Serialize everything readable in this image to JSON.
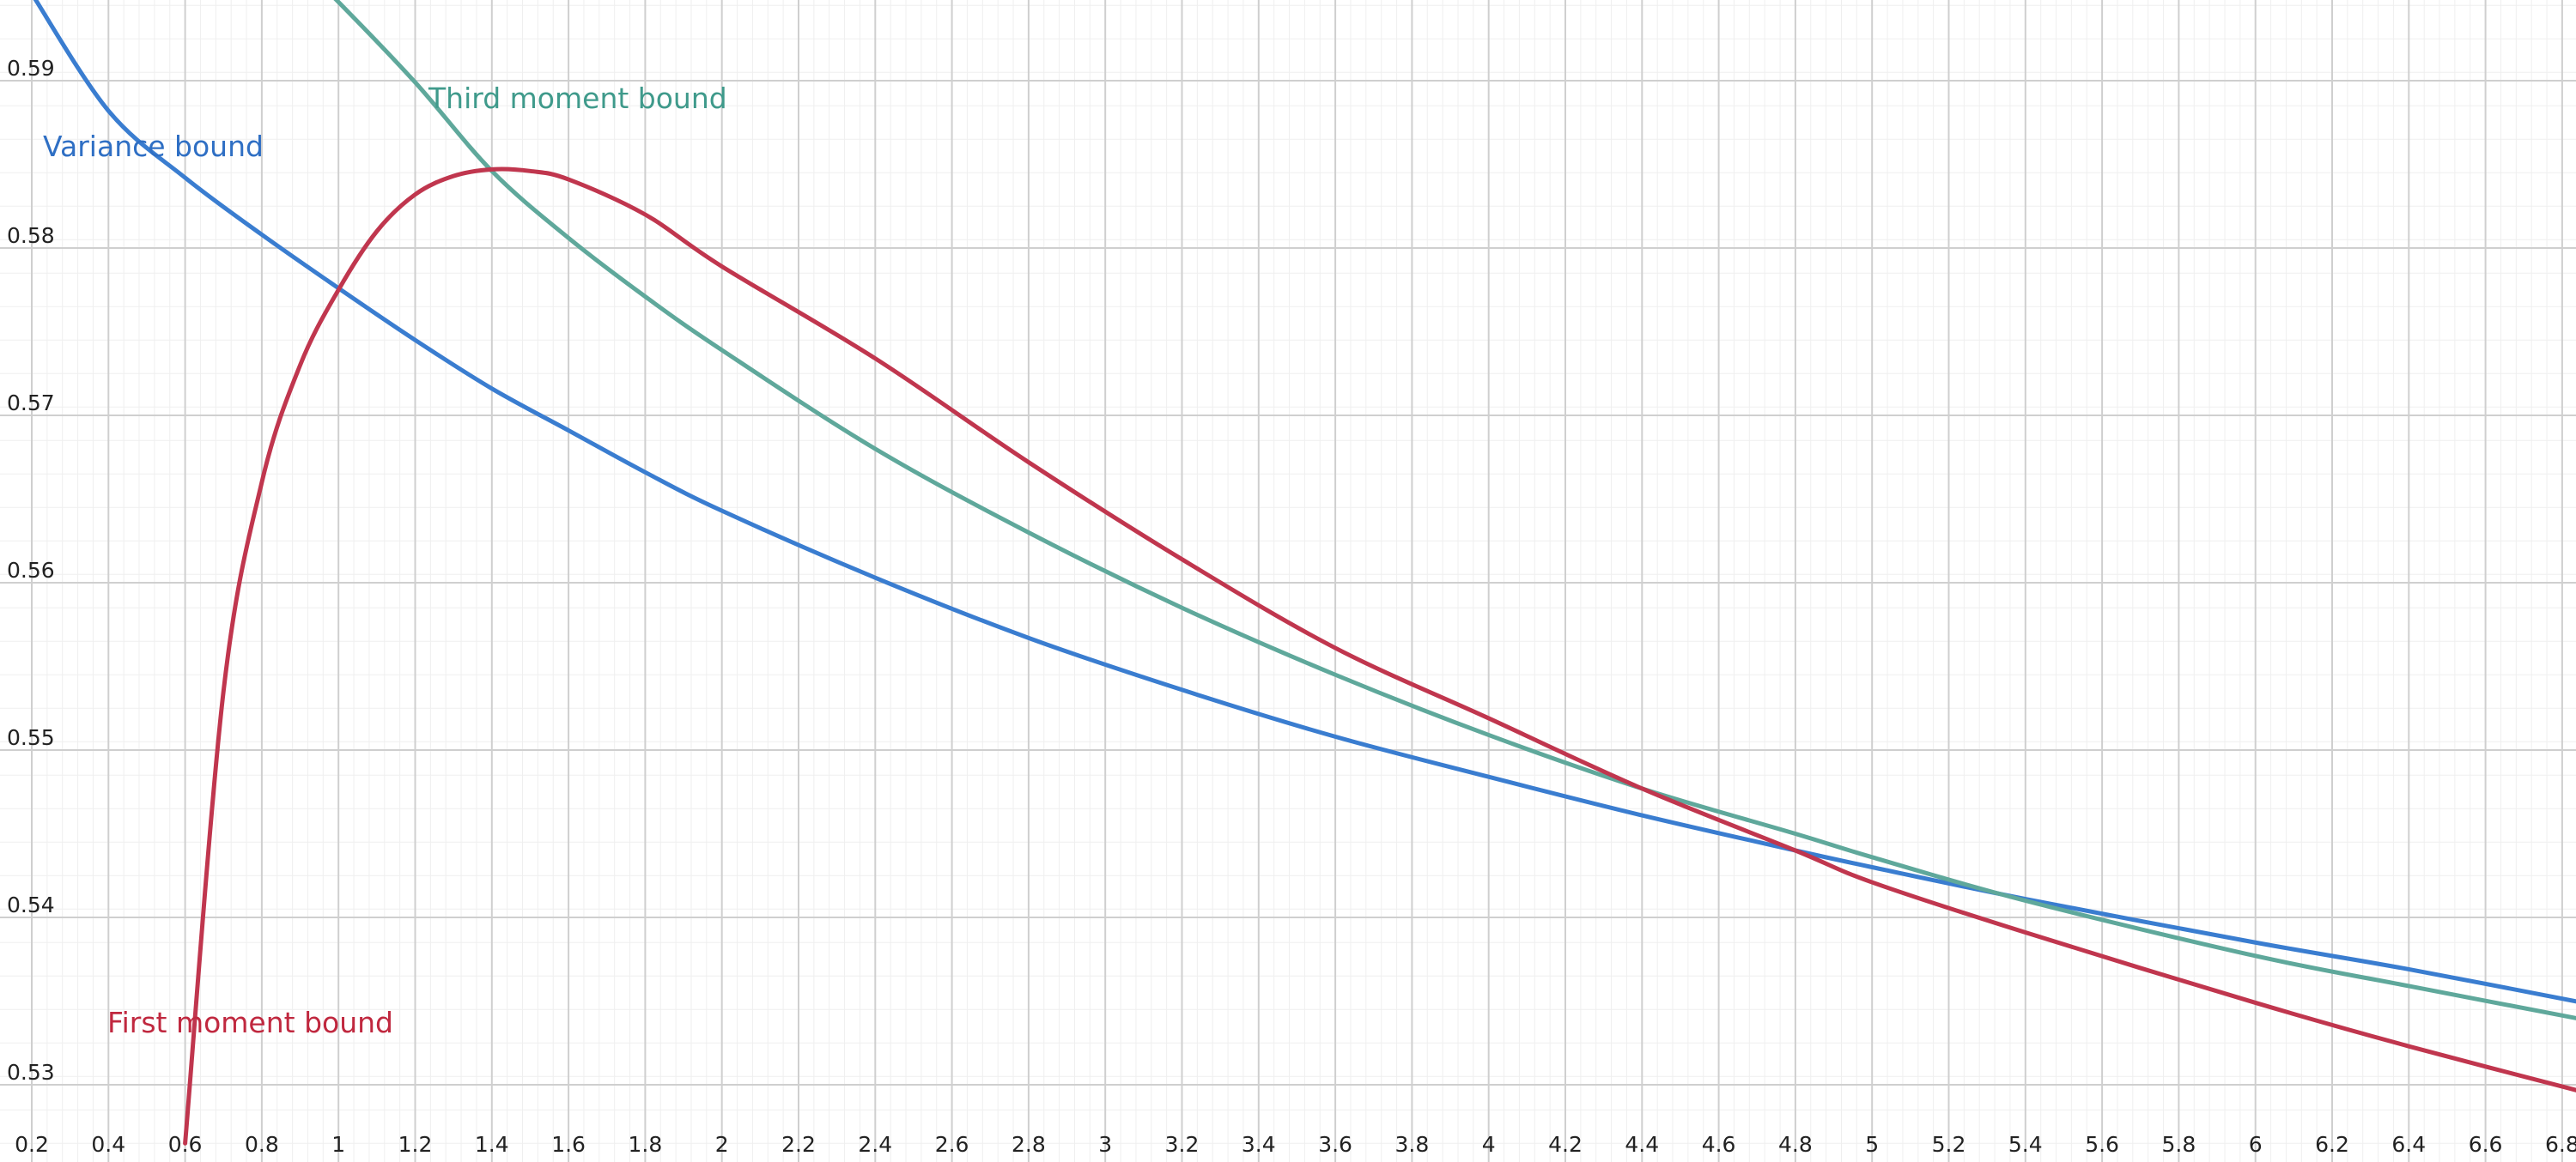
{
  "chart_data": {
    "type": "line",
    "title": "",
    "xlabel": "",
    "ylabel": "",
    "xlim": [
      0.2,
      6.9
    ],
    "ylim": [
      0.5265,
      0.5955
    ],
    "grid": true,
    "x_ticks": [
      "0.2",
      "0.4",
      "0.6",
      "0.8",
      "1",
      "1.2",
      "1.4",
      "1.6",
      "1.8",
      "2",
      "2.2",
      "2.4",
      "2.6",
      "2.8",
      "3",
      "3.2",
      "3.4",
      "3.6",
      "3.8",
      "4",
      "4.2",
      "4.4",
      "4.6",
      "4.8",
      "5",
      "5.2",
      "5.4",
      "5.6",
      "5.8",
      "6",
      "6.2",
      "6.4",
      "6.6",
      "6.8"
    ],
    "y_ticks": [
      "0.53",
      "0.54",
      "0.55",
      "0.56",
      "0.57",
      "0.58",
      "0.59"
    ],
    "series": [
      {
        "name": "Variance bound",
        "color": "#3a7dd0",
        "x": [
          0.2,
          0.4,
          0.6,
          0.8,
          1.0,
          1.2,
          1.4,
          1.6,
          1.8,
          2.0,
          2.4,
          2.8,
          3.2,
          3.6,
          4.0,
          4.4,
          4.8,
          5.0,
          5.4,
          6.0,
          6.4,
          6.9
        ],
        "y": [
          0.5952,
          0.5882,
          0.5842,
          0.5808,
          0.5776,
          0.5745,
          0.5716,
          0.5691,
          0.5666,
          0.5643,
          0.5603,
          0.5567,
          0.5536,
          0.5508,
          0.5484,
          0.5461,
          0.544,
          0.543,
          0.5411,
          0.5385,
          0.5369,
          0.5347
        ]
      },
      {
        "name": "Third moment bound",
        "color": "#5fa89b",
        "x": [
          0.96,
          1.0,
          1.2,
          1.4,
          1.6,
          1.8,
          2.0,
          2.4,
          2.8,
          3.2,
          3.6,
          4.0,
          4.4,
          4.8,
          5.0,
          5.4,
          6.0,
          6.4,
          6.9
        ],
        "y": [
          0.5955,
          0.5947,
          0.5899,
          0.5846,
          0.5806,
          0.5771,
          0.5739,
          0.568,
          0.563,
          0.5585,
          0.5545,
          0.5509,
          0.5477,
          0.545,
          0.5436,
          0.541,
          0.5377,
          0.5359,
          0.5337
        ]
      },
      {
        "name": "First moment bound",
        "color": "#c0364e",
        "x": [
          0.6,
          0.7,
          0.8,
          0.9,
          1.0,
          1.1,
          1.2,
          1.3,
          1.4,
          1.5,
          1.6,
          1.8,
          2.0,
          2.4,
          2.8,
          3.2,
          3.6,
          4.0,
          4.4,
          4.8,
          5.0,
          5.4,
          6.0,
          6.4,
          6.9
        ],
        "y": [
          0.5265,
          0.5535,
          0.566,
          0.573,
          0.5775,
          0.581,
          0.5832,
          0.5843,
          0.5847,
          0.5846,
          0.5841,
          0.582,
          0.5789,
          0.5734,
          0.5672,
          0.5614,
          0.5561,
          0.5519,
          0.5477,
          0.544,
          0.5421,
          0.5391,
          0.5349,
          0.5323,
          0.5293
        ]
      }
    ],
    "annotations": [
      {
        "text": "Variance bound",
        "color": "#2f6fc4"
      },
      {
        "text": "Third moment bound",
        "color": "#3f9a8b"
      },
      {
        "text": "First moment bound",
        "color": "#c0283f"
      }
    ]
  }
}
